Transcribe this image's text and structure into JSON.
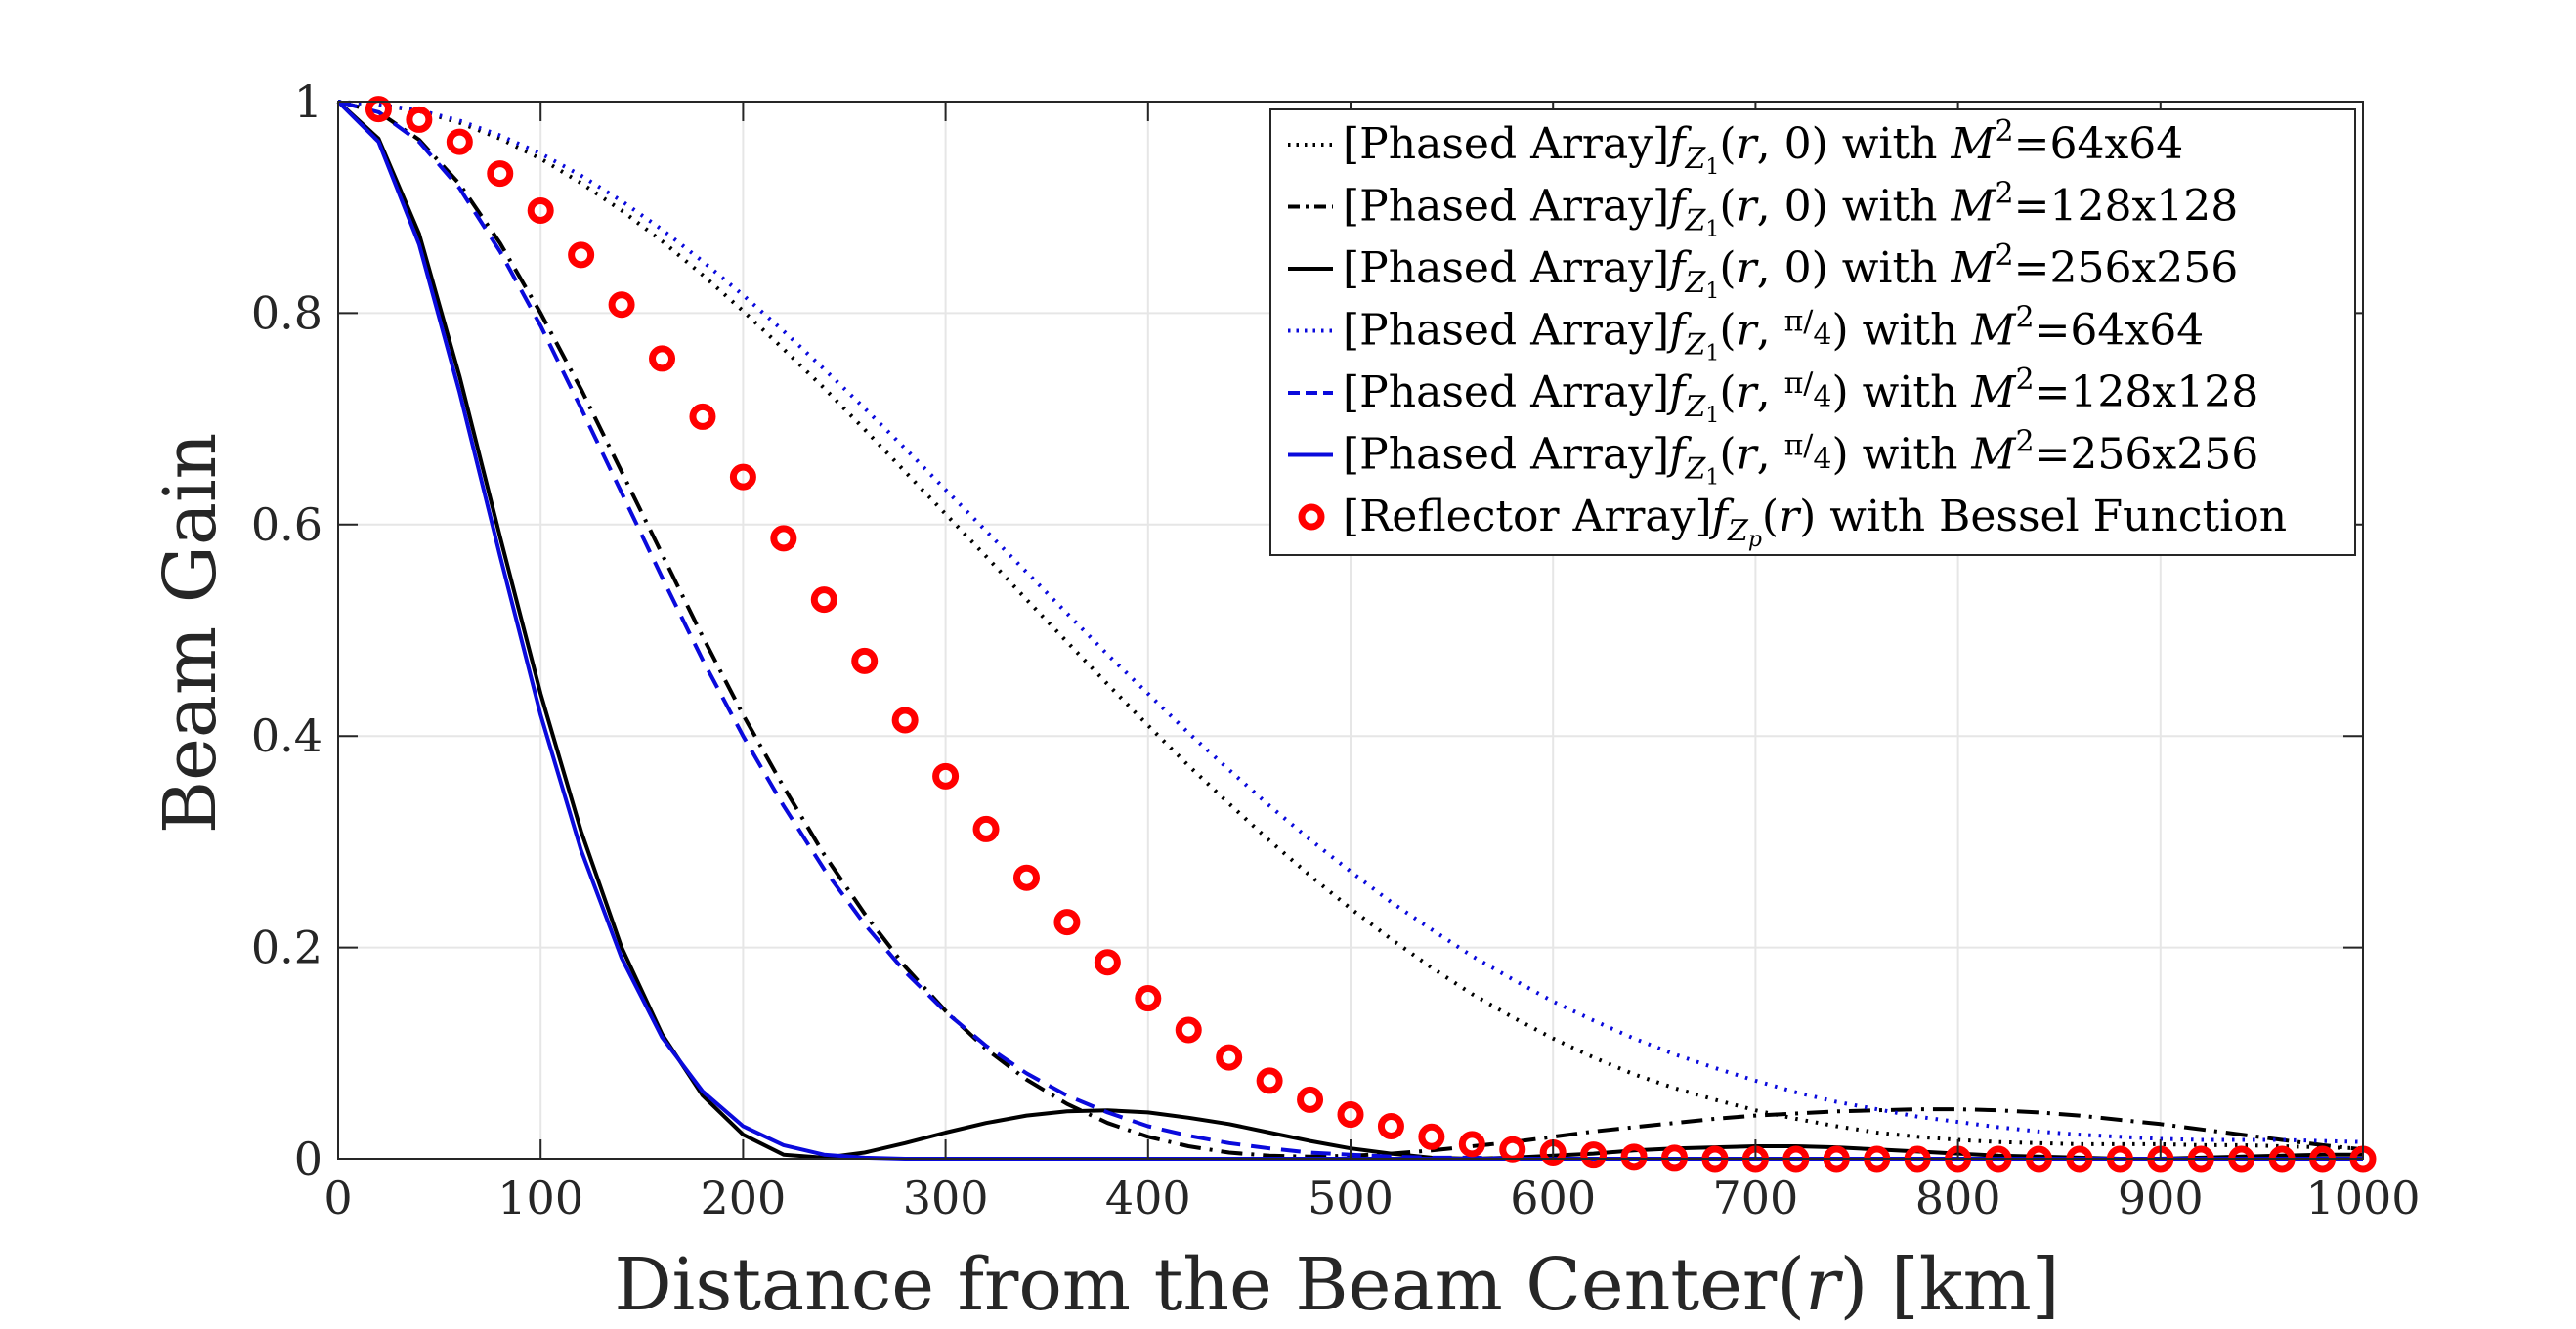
{
  "chart_data": {
    "type": "line",
    "title": "",
    "xlabel": "Distance from the Beam Center(r) [km]",
    "ylabel": "Beam Gain",
    "xlim": [
      0,
      1000
    ],
    "ylim": [
      0,
      1
    ],
    "xticks": [
      "0",
      "100",
      "200",
      "300",
      "400",
      "500",
      "600",
      "700",
      "800",
      "900",
      "1000"
    ],
    "yticks": [
      "0",
      "0.2",
      "0.4",
      "0.6",
      "0.8",
      "1"
    ],
    "grid": true,
    "legend_position": "top-right",
    "x": [
      0,
      20,
      40,
      60,
      80,
      100,
      120,
      140,
      160,
      180,
      200,
      220,
      240,
      260,
      280,
      300,
      320,
      340,
      360,
      380,
      400,
      420,
      440,
      460,
      480,
      500,
      520,
      540,
      560,
      580,
      600,
      620,
      640,
      660,
      680,
      700,
      720,
      740,
      760,
      780,
      800,
      820,
      840,
      860,
      880,
      900,
      920,
      940,
      960,
      980,
      1000
    ],
    "series": [
      {
        "name": "[Phased Array]f_{Z1}(r,0) with M²=64x64",
        "color": "#000000",
        "style": "dotted",
        "values": [
          1,
          0.997,
          0.991,
          0.98,
          0.965,
          0.946,
          0.923,
          0.897,
          0.868,
          0.836,
          0.802,
          0.766,
          0.729,
          0.69,
          0.65,
          0.61,
          0.57,
          0.529,
          0.489,
          0.449,
          0.41,
          0.372,
          0.336,
          0.301,
          0.268,
          0.237,
          0.208,
          0.181,
          0.156,
          0.134,
          0.114,
          0.096,
          0.08,
          0.067,
          0.056,
          0.046,
          0.038,
          0.031,
          0.025,
          0.021,
          0.018,
          0.016,
          0.015,
          0.014,
          0.014,
          0.014,
          0.013,
          0.013,
          0.012,
          0.011,
          0.01
        ]
      },
      {
        "name": "[Phased Array]f_{Z1}(r,0) with M²=128x128",
        "color": "#000000",
        "style": "dashdot",
        "values": [
          1,
          0.99,
          0.964,
          0.922,
          0.866,
          0.8,
          0.728,
          0.65,
          0.572,
          0.494,
          0.42,
          0.352,
          0.288,
          0.232,
          0.182,
          0.14,
          0.104,
          0.075,
          0.052,
          0.034,
          0.021,
          0.012,
          0.006,
          0.003,
          0.002,
          0.003,
          0.005,
          0.008,
          0.012,
          0.016,
          0.021,
          0.026,
          0.03,
          0.034,
          0.038,
          0.041,
          0.043,
          0.045,
          0.046,
          0.047,
          0.047,
          0.046,
          0.044,
          0.041,
          0.037,
          0.033,
          0.028,
          0.023,
          0.018,
          0.013,
          0.009
        ]
      },
      {
        "name": "[Phased Array]f_{Z1}(r,0) with M²=256x256",
        "color": "#000000",
        "style": "solid",
        "values": [
          1,
          0.965,
          0.875,
          0.74,
          0.588,
          0.44,
          0.31,
          0.2,
          0.118,
          0.06,
          0.023,
          0.004,
          0.001,
          0.006,
          0.015,
          0.025,
          0.034,
          0.041,
          0.045,
          0.046,
          0.044,
          0.039,
          0.033,
          0.025,
          0.017,
          0.01,
          0.005,
          0.001,
          0.0,
          0.001,
          0.003,
          0.005,
          0.008,
          0.01,
          0.011,
          0.012,
          0.012,
          0.011,
          0.009,
          0.007,
          0.005,
          0.003,
          0.002,
          0.001,
          0.0,
          0.0,
          0.001,
          0.002,
          0.003,
          0.004,
          0.004
        ]
      },
      {
        "name": "[Phased Array]f_{Z1}(r,π/4) with M²=64x64",
        "color": "#0a0adc",
        "style": "dotted",
        "values": [
          1,
          0.997,
          0.992,
          0.982,
          0.968,
          0.951,
          0.93,
          0.906,
          0.879,
          0.849,
          0.817,
          0.783,
          0.747,
          0.71,
          0.672,
          0.633,
          0.594,
          0.555,
          0.516,
          0.477,
          0.44,
          0.403,
          0.368,
          0.334,
          0.302,
          0.272,
          0.243,
          0.217,
          0.192,
          0.17,
          0.149,
          0.131,
          0.114,
          0.099,
          0.086,
          0.074,
          0.063,
          0.054,
          0.047,
          0.04,
          0.035,
          0.03,
          0.026,
          0.023,
          0.021,
          0.019,
          0.018,
          0.018,
          0.018,
          0.017,
          0.016
        ]
      },
      {
        "name": "[Phased Array]f_{Z1}(r,π/4) with M²=128x128",
        "color": "#0a0adc",
        "style": "dashed",
        "values": [
          1,
          0.99,
          0.962,
          0.918,
          0.858,
          0.788,
          0.71,
          0.63,
          0.55,
          0.472,
          0.4,
          0.334,
          0.274,
          0.222,
          0.177,
          0.139,
          0.107,
          0.081,
          0.06,
          0.044,
          0.031,
          0.022,
          0.015,
          0.01,
          0.006,
          0.004,
          0.002,
          0.001,
          0.001,
          0.0,
          0.0,
          0.0,
          0.0,
          0.0,
          0.0,
          0.0,
          0.0,
          0.0,
          0.0,
          0.0,
          0.0,
          0.0,
          0.0,
          0.0,
          0.0,
          0.0,
          0.0,
          0.0,
          0.0,
          0.0,
          0.0
        ]
      },
      {
        "name": "[Phased Array]f_{Z1}(r,π/4) with M²=256x256",
        "color": "#0a0adc",
        "style": "solid",
        "values": [
          1,
          0.962,
          0.865,
          0.725,
          0.57,
          0.42,
          0.292,
          0.19,
          0.115,
          0.064,
          0.031,
          0.013,
          0.004,
          0.001,
          0.0,
          0.0,
          0.0,
          0.0,
          0.0,
          0.0,
          0.0,
          0.0,
          0.0,
          0.0,
          0.0,
          0.0,
          0.0,
          0.0,
          0.0,
          0.0,
          0.0,
          0.0,
          0.0,
          0.0,
          0.0,
          0.0,
          0.0,
          0.0,
          0.0,
          0.0,
          0.0,
          0.0,
          0.0,
          0.0,
          0.0,
          0.0,
          0.0,
          0.0,
          0.0,
          0.0,
          0.0
        ]
      },
      {
        "name": "[Reflector Array]f_{Zp}(r) with Bessel Function",
        "color": "#ff0000",
        "style": "markers",
        "x": [
          20,
          40,
          60,
          80,
          100,
          120,
          140,
          160,
          180,
          200,
          220,
          240,
          260,
          280,
          300,
          320,
          340,
          360,
          380,
          400,
          420,
          440,
          460,
          480,
          500,
          520,
          540,
          560,
          580,
          600,
          620,
          640,
          660,
          680,
          700,
          720,
          740,
          760,
          780,
          800,
          820,
          840,
          860,
          880,
          900,
          920,
          940,
          960,
          980,
          1000
        ],
        "values": [
          0.993,
          0.983,
          0.962,
          0.932,
          0.897,
          0.855,
          0.808,
          0.757,
          0.702,
          0.645,
          0.587,
          0.529,
          0.471,
          0.415,
          0.362,
          0.312,
          0.266,
          0.224,
          0.186,
          0.152,
          0.122,
          0.096,
          0.074,
          0.056,
          0.042,
          0.031,
          0.021,
          0.014,
          0.009,
          0.006,
          0.004,
          0.002,
          0.001,
          0.0,
          0.0,
          0.0,
          0.0,
          0.0,
          0.0,
          0.0,
          0.0,
          0.0,
          0.0,
          0.0,
          0.0,
          0.0,
          0.0,
          0.0,
          0.0,
          0.0
        ]
      }
    ]
  },
  "legend": [
    {
      "prefix": "[Phased Array]",
      "fn": "f",
      "sub": "Z",
      "subsub": "1",
      "args_before": "(r, ",
      "arg_frac": "",
      "args_after": "0)",
      "with": " with ",
      "mvar": "M",
      "sup": "2",
      "eq": "=64x64",
      "color": "#000000",
      "style": "dotted"
    },
    {
      "prefix": "[Phased Array]",
      "fn": "f",
      "sub": "Z",
      "subsub": "1",
      "args_before": "(r, ",
      "arg_frac": "",
      "args_after": "0)",
      "with": " with ",
      "mvar": "M",
      "sup": "2",
      "eq": "=128x128",
      "color": "#000000",
      "style": "dashdot"
    },
    {
      "prefix": "[Phased Array]",
      "fn": "f",
      "sub": "Z",
      "subsub": "1",
      "args_before": "(r, ",
      "arg_frac": "",
      "args_after": "0)",
      "with": " with ",
      "mvar": "M",
      "sup": "2",
      "eq": "=256x256",
      "color": "#000000",
      "style": "solid"
    },
    {
      "prefix": "[Phased Array]",
      "fn": "f",
      "sub": "Z",
      "subsub": "1",
      "args_before": "(r, ",
      "arg_frac": "π/4",
      "args_after": ")",
      "with": " with ",
      "mvar": "M",
      "sup": "2",
      "eq": "=64x64",
      "color": "#0a0adc",
      "style": "dotted"
    },
    {
      "prefix": "[Phased Array]",
      "fn": "f",
      "sub": "Z",
      "subsub": "1",
      "args_before": "(r, ",
      "arg_frac": "π/4",
      "args_after": ")",
      "with": " with ",
      "mvar": "M",
      "sup": "2",
      "eq": "=128x128",
      "color": "#0a0adc",
      "style": "dashed"
    },
    {
      "prefix": "[Phased Array]",
      "fn": "f",
      "sub": "Z",
      "subsub": "1",
      "args_before": "(r, ",
      "arg_frac": "π/4",
      "args_after": ")",
      "with": " with ",
      "mvar": "M",
      "sup": "2",
      "eq": "=256x256",
      "color": "#0a0adc",
      "style": "solid"
    },
    {
      "prefix": "[Reflector Array]",
      "fn": "f",
      "sub": "Z",
      "subsub": "p",
      "args_before": "(r)",
      "arg_frac": "",
      "args_after": "",
      "with": " with Bessel Function",
      "mvar": "",
      "sup": "",
      "eq": "",
      "color": "#ff0000",
      "style": "markers"
    }
  ]
}
